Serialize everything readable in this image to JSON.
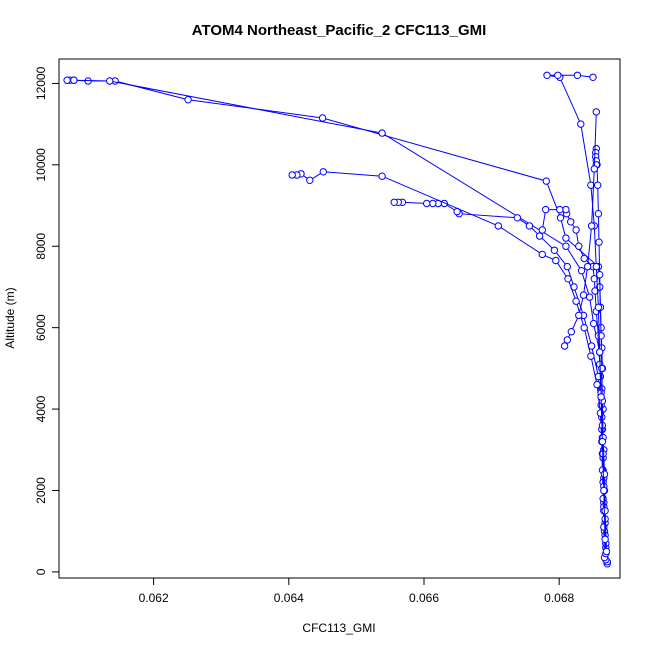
{
  "chart_data": {
    "type": "line",
    "title": "ATOM4 Northeast_Pacific_2 CFC113_GMI",
    "xlabel": "CFC113_GMI",
    "ylabel": "Altitude (m)",
    "xlim": [
      0.0606,
      0.0689
    ],
    "ylim": [
      -150,
      12600
    ],
    "x_ticks": [
      0.062,
      0.064,
      0.066,
      0.068
    ],
    "x_tick_labels": [
      "0.062",
      "0.064",
      "0.066",
      "0.068"
    ],
    "y_ticks": [
      0,
      2000,
      4000,
      6000,
      8000,
      10000,
      12000
    ],
    "y_tick_labels": [
      "0",
      "2000",
      "4000",
      "6000",
      "8000",
      "10000",
      "12000"
    ],
    "marker": "open-circle",
    "grid": false,
    "legend": "none",
    "color": "#0000ff",
    "series": [
      {
        "x": [
          0.06871,
          0.06869,
          0.06867,
          0.06866,
          0.06867,
          0.06865,
          0.06866,
          0.06864,
          0.06865,
          0.06863,
          0.06864,
          0.06863,
          0.06862,
          0.06861,
          0.0686,
          0.06858,
          0.0681,
          0.06802,
          0.06781,
          0.0645,
          0.06251,
          0.06143,
          0.06103,
          0.06082,
          0.06076
        ],
        "y": [
          200,
          600,
          1000,
          1500,
          2000,
          2500,
          3000,
          3500,
          4000,
          4500,
          5000,
          5500,
          6000,
          6500,
          7000,
          7500,
          8200,
          8700,
          9600,
          11150,
          11600,
          12060,
          12060,
          12080,
          12080
        ]
      },
      {
        "x": [
          0.06871,
          0.06869,
          0.06868,
          0.06866,
          0.06866,
          0.06865,
          0.06864,
          0.06863,
          0.06862,
          0.06861,
          0.0686,
          0.06851,
          0.06845,
          0.06833,
          0.0681,
          0.06538,
          0.06135,
          0.06082,
          0.06072
        ],
        "y": [
          250,
          700,
          1200,
          1700,
          2300,
          2800,
          3300,
          3800,
          4300,
          4800,
          5400,
          6100,
          6750,
          7400,
          8000,
          10780,
          12060,
          12080,
          12080
        ]
      },
      {
        "x": [
          0.06869,
          0.06868,
          0.06866,
          0.06865,
          0.06864,
          0.06863,
          0.06862,
          0.06858,
          0.06848,
          0.06836,
          0.06822,
          0.06812,
          0.06793,
          0.06756,
          0.06738,
          0.06652,
          0.06649,
          0.0663,
          0.06621,
          0.06613,
          0.06604,
          0.06568,
          0.06562,
          0.06556
        ],
        "y": [
          300,
          900,
          1600,
          2200,
          2900,
          3500,
          4100,
          4800,
          5550,
          6300,
          7000,
          7500,
          7900,
          8500,
          8700,
          8800,
          8850,
          9050,
          9050,
          9050,
          9050,
          9080,
          9080,
          9080
        ]
      },
      {
        "x": [
          0.06867,
          0.06866,
          0.06865,
          0.06864,
          0.06863,
          0.06861,
          0.06856,
          0.06847,
          0.06837,
          0.06825,
          0.06813,
          0.06795,
          0.06775,
          0.0671,
          0.06538,
          0.06451,
          0.06431,
          0.06418,
          0.06412,
          0.06405
        ],
        "y": [
          350,
          1100,
          1800,
          2500,
          3200,
          3900,
          4600,
          5300,
          6000,
          6650,
          7200,
          7650,
          7800,
          8500,
          9720,
          9830,
          9620,
          9780,
          9750,
          9750
        ]
      },
      {
        "x": [
          0.06869,
          0.06868,
          0.06866,
          0.06865,
          0.06864,
          0.06862,
          0.0686,
          0.06858,
          0.06855,
          0.06853,
          0.06852,
          0.0685,
          0.06837,
          0.06829,
          0.06825,
          0.06817,
          0.06811,
          0.0681,
          0.06801,
          0.0678,
          0.06775,
          0.06771
        ],
        "y": [
          450,
          1300,
          2100,
          2900,
          3600,
          4400,
          5100,
          5800,
          6400,
          6900,
          7200,
          7500,
          7700,
          8000,
          8400,
          8600,
          8800,
          8900,
          8900,
          8900,
          8400,
          8250
        ]
      },
      {
        "x": [
          0.0687,
          0.06868,
          0.06867,
          0.06865,
          0.06864,
          0.06863,
          0.06862,
          0.06861,
          0.0686,
          0.06859,
          0.06858,
          0.06857,
          0.06856,
          0.06855,
          0.06854,
          0.06854,
          0.06855,
          0.06855
        ],
        "y": [
          500,
          1500,
          2400,
          3300,
          4200,
          5000,
          5800,
          6500,
          7300,
          8100,
          8800,
          9500,
          10000,
          10400,
          10300,
          10200,
          10100,
          10000
        ]
      },
      {
        "x": [
          0.06868,
          0.06866,
          0.06864,
          0.06862,
          0.0686,
          0.06858,
          0.06855,
          0.06852,
          0.06847,
          0.06832,
          0.06801,
          0.06782,
          0.06798,
          0.06827,
          0.0685
        ],
        "y": [
          800,
          2000,
          3200,
          4300,
          5400,
          6500,
          7500,
          8500,
          9500,
          11000,
          12150,
          12200,
          12200,
          12200,
          12150
        ]
      },
      {
        "x": [
          0.06855,
          0.06852,
          0.06848,
          0.06842,
          0.06836,
          0.06829,
          0.06818,
          0.06812,
          0.06808
        ],
        "y": [
          11300,
          9900,
          8500,
          7500,
          6800,
          6300,
          5900,
          5700,
          5550
        ]
      }
    ]
  }
}
